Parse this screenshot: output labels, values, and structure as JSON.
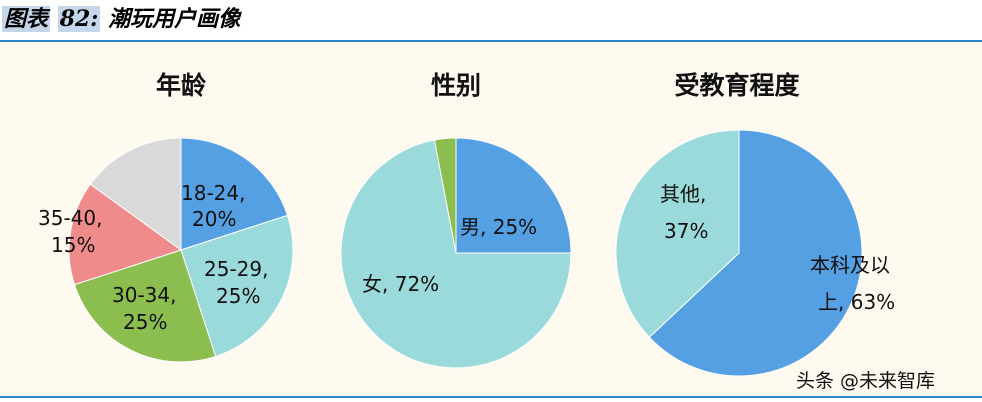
{
  "header": {
    "title_prefix": "图表",
    "title_number": "82:",
    "title_text": "潮玩用户画像"
  },
  "watermark": "头条 @未来智库",
  "colors": {
    "blue": "#55a0e2",
    "cyan": "#9bdadb",
    "green": "#8bbd4f",
    "pink": "#ef8b8b",
    "gray": "#d9d9d9"
  },
  "chart_data": [
    {
      "type": "pie",
      "title": "年龄",
      "slices": [
        {
          "label": "18-24,",
          "value_label": "20%",
          "value": 20,
          "color": "#55a0e2"
        },
        {
          "label": "25-29,",
          "value_label": "25%",
          "value": 25,
          "color": "#9bdadb"
        },
        {
          "label": "30-34,",
          "value_label": "25%",
          "value": 25,
          "color": "#8bbd4f"
        },
        {
          "label": "35-40,",
          "value_label": "15%",
          "value": 15,
          "color": "#ef8b8b"
        },
        {
          "label": "",
          "value_label": "",
          "value": 15,
          "color": "#d9d9d9"
        }
      ]
    },
    {
      "type": "pie",
      "title": "性别",
      "slices": [
        {
          "label": "男, 25%",
          "value": 25,
          "color": "#55a0e2"
        },
        {
          "label": "女, 72%",
          "value": 72,
          "color": "#9bdadb"
        },
        {
          "label": "",
          "value": 3,
          "color": "#8bbd4f"
        }
      ]
    },
    {
      "type": "pie",
      "title": "受教育程度",
      "slices": [
        {
          "label": "本科及以",
          "value_label": "上, 63%",
          "value": 63,
          "color": "#55a0e2"
        },
        {
          "label": "其他,",
          "value_label": "37%",
          "value": 37,
          "color": "#9bdadb"
        }
      ]
    }
  ]
}
